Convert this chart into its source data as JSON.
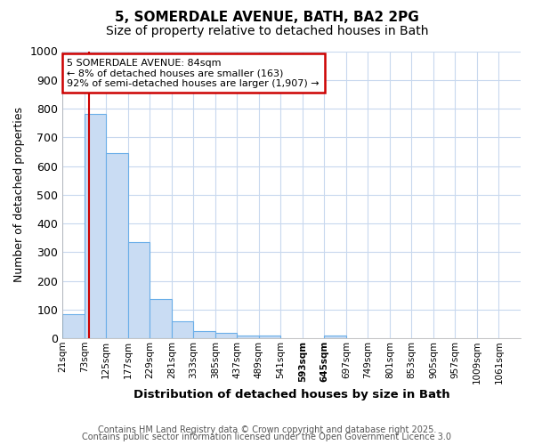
{
  "title1": "5, SOMERDALE AVENUE, BATH, BA2 2PG",
  "title2": "Size of property relative to detached houses in Bath",
  "xlabel": "Distribution of detached houses by size in Bath",
  "ylabel": "Number of detached properties",
  "bin_labels": [
    "21sqm",
    "73sqm",
    "125sqm",
    "177sqm",
    "229sqm",
    "281sqm",
    "333sqm",
    "385sqm",
    "437sqm",
    "489sqm",
    "541sqm",
    "593sqm",
    "645sqm",
    "697sqm",
    "749sqm",
    "801sqm",
    "853sqm",
    "905sqm",
    "957sqm",
    "1009sqm",
    "1061sqm"
  ],
  "bin_edges": [
    21,
    73,
    125,
    177,
    229,
    281,
    333,
    385,
    437,
    489,
    541,
    593,
    645,
    697,
    749,
    801,
    853,
    905,
    957,
    1009,
    1061
  ],
  "bar_heights": [
    85,
    780,
    645,
    335,
    135,
    60,
    25,
    18,
    10,
    8,
    0,
    0,
    10,
    0,
    0,
    0,
    0,
    0,
    0,
    0,
    0
  ],
  "bar_color": "#c9dcf3",
  "bar_edge_color": "#6aaee8",
  "property_size": 84,
  "vline_color": "#cc0000",
  "annotation_text": "5 SOMERDALE AVENUE: 84sqm\n← 8% of detached houses are smaller (163)\n92% of semi-detached houses are larger (1,907) →",
  "annotation_box_color": "#cc0000",
  "ylim": [
    0,
    1000
  ],
  "yticks": [
    0,
    100,
    200,
    300,
    400,
    500,
    600,
    700,
    800,
    900,
    1000
  ],
  "footer_line1": "Contains HM Land Registry data © Crown copyright and database right 2025.",
  "footer_line2": "Contains public sector information licensed under the Open Government Licence 3.0",
  "bg_color": "#ffffff",
  "plot_bg_color": "#ffffff",
  "grid_color": "#c8d8ee",
  "title_fontsize": 11,
  "subtitle_fontsize": 10,
  "bold_xtick_indices": [
    11,
    12
  ],
  "highlight_xtick_index": 12
}
